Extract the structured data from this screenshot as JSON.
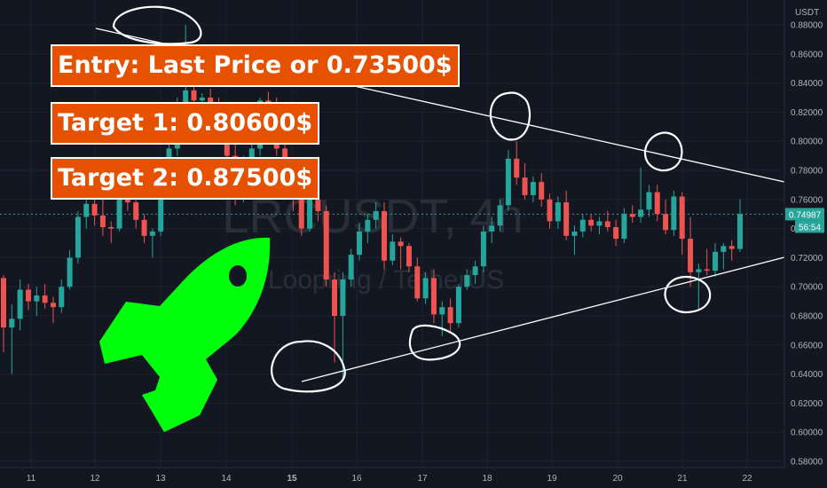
{
  "chart_data": {
    "type": "candlestick",
    "symbol": "LRCUSDT, 4h",
    "watermark_sub": "Loopring / TetherUS",
    "currency": "USDT",
    "ylim": [
      0.575,
      0.89
    ],
    "y_ticks": [
      "0.88000",
      "0.86000",
      "0.84000",
      "0.82000",
      "0.80000",
      "0.78000",
      "0.76000",
      "0.74000",
      "0.72000",
      "0.70000",
      "0.68000",
      "0.66000",
      "0.64000",
      "0.62000",
      "0.60000",
      "0.58000"
    ],
    "x_ticks": [
      "11",
      "12",
      "13",
      "14",
      "15",
      "16",
      "17",
      "18",
      "19",
      "20",
      "21",
      "22"
    ],
    "last_price": "0.74987",
    "countdown": "56:54",
    "up_color": "#26a69a",
    "down_color": "#ef5350",
    "candles": [
      [
        0.706,
        0.708,
        0.655,
        0.672
      ],
      [
        0.672,
        0.688,
        0.64,
        0.678
      ],
      [
        0.678,
        0.705,
        0.67,
        0.698
      ],
      [
        0.698,
        0.702,
        0.684,
        0.69
      ],
      [
        0.69,
        0.7,
        0.68,
        0.694
      ],
      [
        0.694,
        0.702,
        0.685,
        0.689
      ],
      [
        0.689,
        0.693,
        0.675,
        0.686
      ],
      [
        0.686,
        0.705,
        0.682,
        0.7
      ],
      [
        0.7,
        0.725,
        0.698,
        0.72
      ],
      [
        0.72,
        0.752,
        0.716,
        0.748
      ],
      [
        0.748,
        0.764,
        0.74,
        0.757
      ],
      [
        0.757,
        0.762,
        0.742,
        0.749
      ],
      [
        0.749,
        0.76,
        0.735,
        0.741
      ],
      [
        0.741,
        0.745,
        0.73,
        0.74
      ],
      [
        0.74,
        0.77,
        0.738,
        0.765
      ],
      [
        0.765,
        0.772,
        0.752,
        0.758
      ],
      [
        0.758,
        0.766,
        0.74,
        0.746
      ],
      [
        0.746,
        0.75,
        0.73,
        0.735
      ],
      [
        0.735,
        0.74,
        0.72,
        0.738
      ],
      [
        0.738,
        0.77,
        0.735,
        0.764
      ],
      [
        0.764,
        0.8,
        0.76,
        0.795
      ],
      [
        0.795,
        0.83,
        0.79,
        0.823
      ],
      [
        0.823,
        0.88,
        0.818,
        0.835
      ],
      [
        0.835,
        0.84,
        0.82,
        0.828
      ],
      [
        0.828,
        0.833,
        0.815,
        0.83
      ],
      [
        0.83,
        0.836,
        0.82,
        0.825
      ],
      [
        0.825,
        0.83,
        0.8,
        0.808
      ],
      [
        0.808,
        0.812,
        0.782,
        0.79
      ],
      [
        0.79,
        0.8,
        0.756,
        0.762
      ],
      [
        0.762,
        0.79,
        0.758,
        0.785
      ],
      [
        0.785,
        0.8,
        0.78,
        0.795
      ],
      [
        0.795,
        0.83,
        0.79,
        0.828
      ],
      [
        0.828,
        0.834,
        0.818,
        0.826
      ],
      [
        0.826,
        0.83,
        0.79,
        0.795
      ],
      [
        0.795,
        0.8,
        0.76,
        0.768
      ],
      [
        0.768,
        0.775,
        0.752,
        0.76
      ],
      [
        0.76,
        0.762,
        0.735,
        0.74
      ],
      [
        0.74,
        0.765,
        0.738,
        0.76
      ],
      [
        0.76,
        0.766,
        0.745,
        0.752
      ],
      [
        0.752,
        0.756,
        0.7,
        0.705
      ],
      [
        0.705,
        0.71,
        0.648,
        0.68
      ],
      [
        0.68,
        0.71,
        0.635,
        0.705
      ],
      [
        0.705,
        0.726,
        0.7,
        0.722
      ],
      [
        0.722,
        0.744,
        0.718,
        0.738
      ],
      [
        0.738,
        0.75,
        0.73,
        0.746
      ],
      [
        0.746,
        0.758,
        0.74,
        0.752
      ],
      [
        0.752,
        0.758,
        0.712,
        0.718
      ],
      [
        0.718,
        0.736,
        0.715,
        0.731
      ],
      [
        0.731,
        0.734,
        0.712,
        0.728
      ],
      [
        0.728,
        0.73,
        0.71,
        0.714
      ],
      [
        0.714,
        0.72,
        0.69,
        0.692
      ],
      [
        0.692,
        0.71,
        0.688,
        0.706
      ],
      [
        0.706,
        0.712,
        0.675,
        0.681
      ],
      [
        0.681,
        0.69,
        0.666,
        0.686
      ],
      [
        0.686,
        0.692,
        0.668,
        0.675
      ],
      [
        0.675,
        0.702,
        0.672,
        0.7
      ],
      [
        0.7,
        0.712,
        0.698,
        0.708
      ],
      [
        0.708,
        0.718,
        0.702,
        0.714
      ],
      [
        0.714,
        0.742,
        0.71,
        0.738
      ],
      [
        0.738,
        0.748,
        0.73,
        0.742
      ],
      [
        0.742,
        0.76,
        0.738,
        0.756
      ],
      [
        0.756,
        0.794,
        0.752,
        0.788
      ],
      [
        0.788,
        0.8,
        0.77,
        0.775
      ],
      [
        0.775,
        0.785,
        0.76,
        0.763
      ],
      [
        0.763,
        0.776,
        0.758,
        0.772
      ],
      [
        0.772,
        0.778,
        0.755,
        0.76
      ],
      [
        0.76,
        0.764,
        0.74,
        0.745
      ],
      [
        0.745,
        0.762,
        0.74,
        0.758
      ],
      [
        0.758,
        0.766,
        0.732,
        0.735
      ],
      [
        0.735,
        0.742,
        0.722,
        0.738
      ],
      [
        0.738,
        0.75,
        0.734,
        0.746
      ],
      [
        0.746,
        0.75,
        0.738,
        0.742
      ],
      [
        0.742,
        0.748,
        0.736,
        0.745
      ],
      [
        0.745,
        0.752,
        0.738,
        0.741
      ],
      [
        0.741,
        0.746,
        0.728,
        0.733
      ],
      [
        0.733,
        0.754,
        0.73,
        0.75
      ],
      [
        0.75,
        0.756,
        0.744,
        0.748
      ],
      [
        0.748,
        0.782,
        0.744,
        0.753
      ],
      [
        0.753,
        0.77,
        0.748,
        0.765
      ],
      [
        0.765,
        0.77,
        0.745,
        0.75
      ],
      [
        0.75,
        0.76,
        0.736,
        0.739
      ],
      [
        0.739,
        0.766,
        0.735,
        0.762
      ],
      [
        0.762,
        0.765,
        0.722,
        0.733
      ],
      [
        0.733,
        0.748,
        0.7,
        0.71
      ],
      [
        0.71,
        0.716,
        0.684,
        0.712
      ],
      [
        0.712,
        0.726,
        0.708,
        0.711
      ],
      [
        0.711,
        0.73,
        0.707,
        0.724
      ],
      [
        0.724,
        0.73,
        0.712,
        0.728
      ],
      [
        0.728,
        0.732,
        0.718,
        0.726
      ],
      [
        0.726,
        0.76,
        0.724,
        0.75
      ]
    ]
  },
  "annotations": {
    "entry": "Entry: Last Price or 0.73500$",
    "target1": "Target 1: 0.80600$",
    "target2": "Target 2: 0.87500$"
  }
}
